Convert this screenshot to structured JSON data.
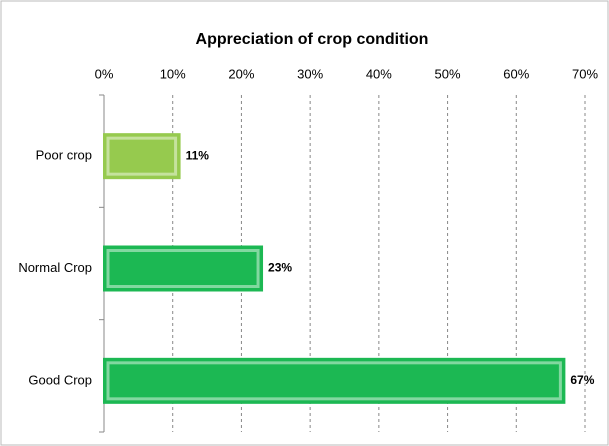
{
  "chart_data": {
    "type": "bar",
    "orientation": "horizontal",
    "title": "Appreciation of crop condition",
    "categories": [
      "Poor crop",
      "Normal Crop",
      "Good Crop"
    ],
    "values": [
      11,
      23,
      67
    ],
    "value_labels": [
      "11%",
      "23%",
      "67%"
    ],
    "colors": [
      "#a3dc55",
      "#1ec85a",
      "#1ec85a"
    ],
    "xlim": [
      0,
      70
    ],
    "xticks": [
      {
        "value": 0,
        "label": "0%"
      },
      {
        "value": 10,
        "label": "10%"
      },
      {
        "value": 20,
        "label": "20%"
      },
      {
        "value": 30,
        "label": "30%"
      },
      {
        "value": 40,
        "label": "40%"
      },
      {
        "value": 50,
        "label": "50%"
      },
      {
        "value": 60,
        "label": "60%"
      },
      {
        "value": 70,
        "label": "70%"
      }
    ],
    "grid": true
  }
}
